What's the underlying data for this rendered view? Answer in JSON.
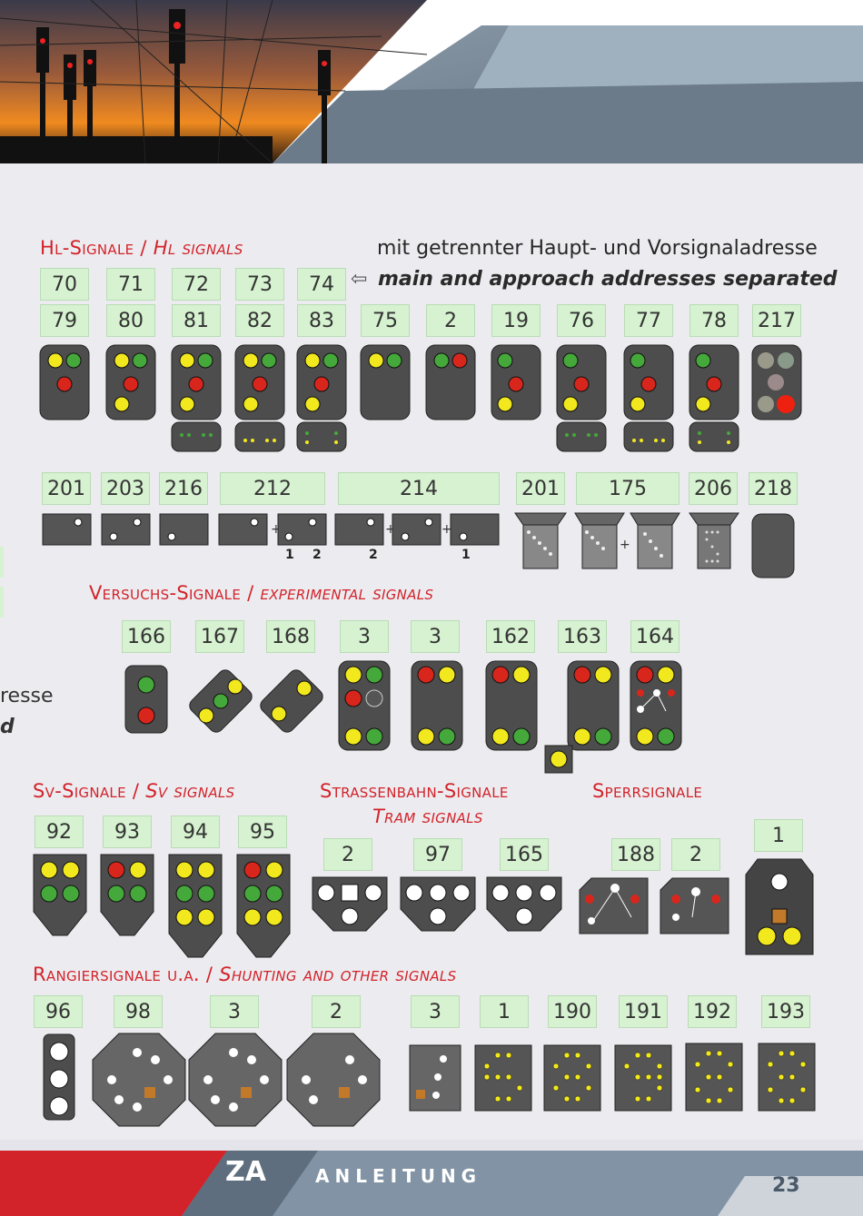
{
  "sections": {
    "hl": {
      "de": "Hl-Signale /",
      "en": "Hl signals"
    },
    "versuch": {
      "de": "Versuchs-Signale /",
      "en": "experimental signals"
    },
    "sv": {
      "de": "Sv-Signale /",
      "en": "Sv signals"
    },
    "tram": {
      "de": "Strassenbahn-Signale",
      "en": "Tram signals"
    },
    "sperr": {
      "de": "Sperrsignale"
    },
    "rangier": {
      "de": "Rangiersignale u.a. /",
      "en": "Shunting and other signals"
    }
  },
  "notes": {
    "separate_de": "mit getrennter Haupt- und Vorsignaladresse",
    "separate_en": "main and approach addresses separated",
    "arrow": "⇦"
  },
  "edge_fragments": {
    "line1": "resse",
    "line2": "d"
  },
  "hl_row1": [
    "70",
    "71",
    "72",
    "73",
    "74"
  ],
  "hl_row2": [
    "79",
    "80",
    "81",
    "82",
    "83",
    "75",
    "2",
    "19",
    "76",
    "77",
    "78",
    "217"
  ],
  "hl_row3": [
    "201",
    "203",
    "216",
    "212",
    "214",
    "201",
    "175",
    "206",
    "218"
  ],
  "versuch_row": [
    "166",
    "167",
    "168",
    "3",
    "3",
    "162",
    "163",
    "164"
  ],
  "sv_row": [
    "92",
    "93",
    "94",
    "95"
  ],
  "tram_row": [
    "2",
    "97",
    "165"
  ],
  "sperr_row": [
    "188",
    "2",
    "1"
  ],
  "rangier_row": [
    "96",
    "98",
    "3",
    "2",
    "3",
    "1",
    "190",
    "191",
    "192",
    "193"
  ],
  "footer": {
    "brand": "ZA",
    "title": "ANLEITUNG",
    "page": "23"
  },
  "colors": {
    "accent_red": "#d2232a",
    "num_box": "#d6f2d0",
    "lamp_yellow": "#f2e81e",
    "lamp_green": "#45a83a",
    "lamp_red": "#d9261c",
    "signal_dark": "#4d4d4d"
  }
}
